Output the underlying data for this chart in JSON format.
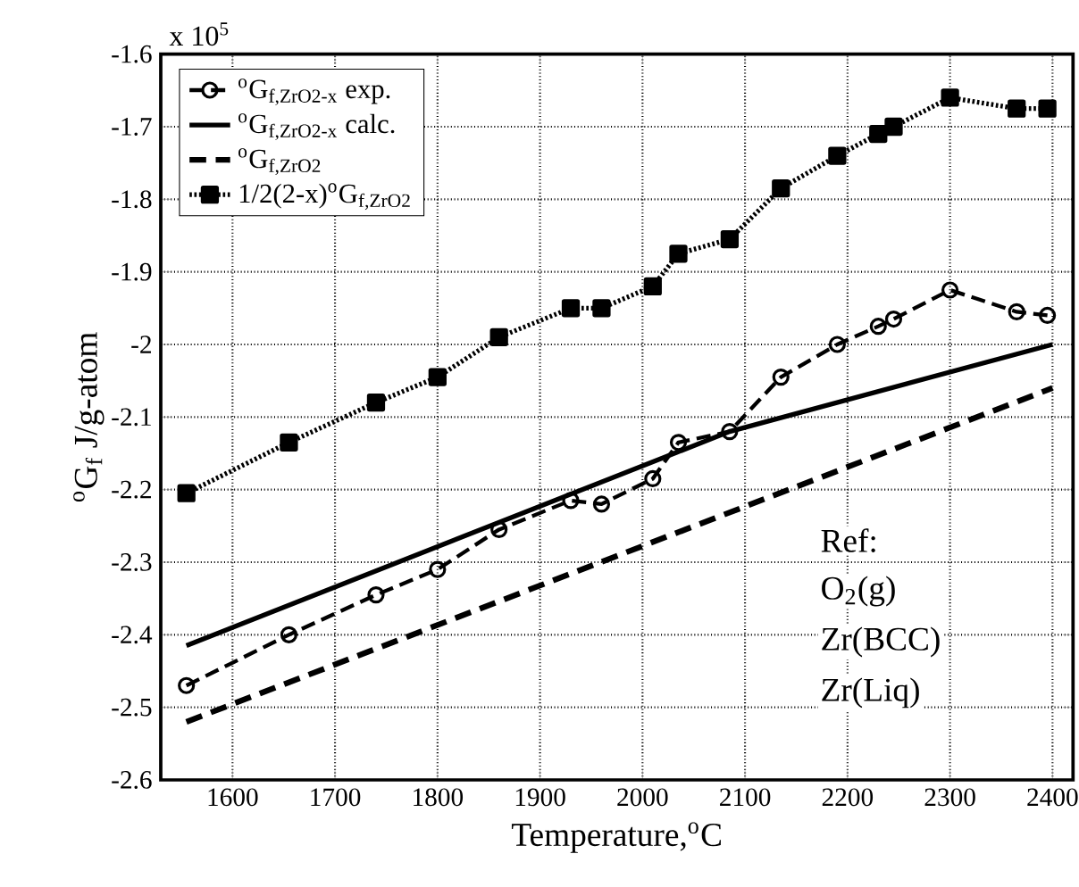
{
  "chart_data": {
    "type": "line",
    "xlabel": "Temperature,$^{o}$C",
    "ylabel": "$^{o}$G$_{f}$ J/g-atom",
    "xlim": [
      1530,
      2420
    ],
    "xticks": [
      1600,
      1700,
      1800,
      1900,
      2000,
      2100,
      2200,
      2300,
      2400
    ],
    "ylim": [
      -2.6,
      -1.6
    ],
    "yticks": [
      -2.6,
      -2.5,
      -2.4,
      -2.3,
      -2.2,
      -2.1,
      -2,
      -1.9,
      -1.8,
      -1.7,
      -1.6
    ],
    "grid": true,
    "legend": "top left",
    "annotations": [
      "x 10$^{5}$",
      "Ref:",
      "O$_{2}$(g)",
      "Zr(BCC)",
      "Zr(Liq)"
    ],
    "series": [
      {
        "name": "$^{o}$G$_{f,ZrO2-x}$ exp.",
        "color": "#000000",
        "marker": "circle",
        "line_style": "dashed",
        "x": [
          1555,
          1655,
          1740,
          1800,
          1860,
          1930,
          1960,
          2010,
          2035,
          2085,
          2135,
          2190,
          2230,
          2245,
          2300,
          2365,
          2395
        ],
        "values": [
          -2.47,
          -2.4,
          -2.345,
          -2.31,
          -2.255,
          -2.215,
          -2.22,
          -2.185,
          -2.135,
          -2.12,
          -2.045,
          -2.0,
          -1.975,
          -1.965,
          -1.925,
          -1.955,
          -1.96
        ]
      },
      {
        "name": "$^{o}$G$_{f,ZrO2-x}$ calc.",
        "color": "#000000",
        "marker": "none",
        "line_style": "solid",
        "x": [
          1555,
          2085,
          2400
        ],
        "values": [
          -2.415,
          -2.12,
          -2.0
        ]
      },
      {
        "name": "$^{o}$G$_{f,ZrO2}$",
        "color": "#000000",
        "marker": "none",
        "line_style": "dashed",
        "x": [
          1555,
          2400
        ],
        "values": [
          -2.52,
          -2.06
        ]
      },
      {
        "name": "1/2(2-x)$^{o}$G$_{f,ZrO2}$",
        "color": "#000000",
        "marker": "square",
        "line_style": "dotted",
        "x": [
          1555,
          1655,
          1740,
          1800,
          1860,
          1930,
          1960,
          2010,
          2035,
          2085,
          2135,
          2190,
          2230,
          2245,
          2300,
          2365,
          2395
        ],
        "values": [
          -2.205,
          -2.135,
          -2.08,
          -2.045,
          -1.99,
          -1.95,
          -1.95,
          -1.92,
          -1.875,
          -1.855,
          -1.785,
          -1.74,
          -1.71,
          -1.7,
          -1.66,
          -1.675,
          -1.675
        ]
      }
    ]
  }
}
